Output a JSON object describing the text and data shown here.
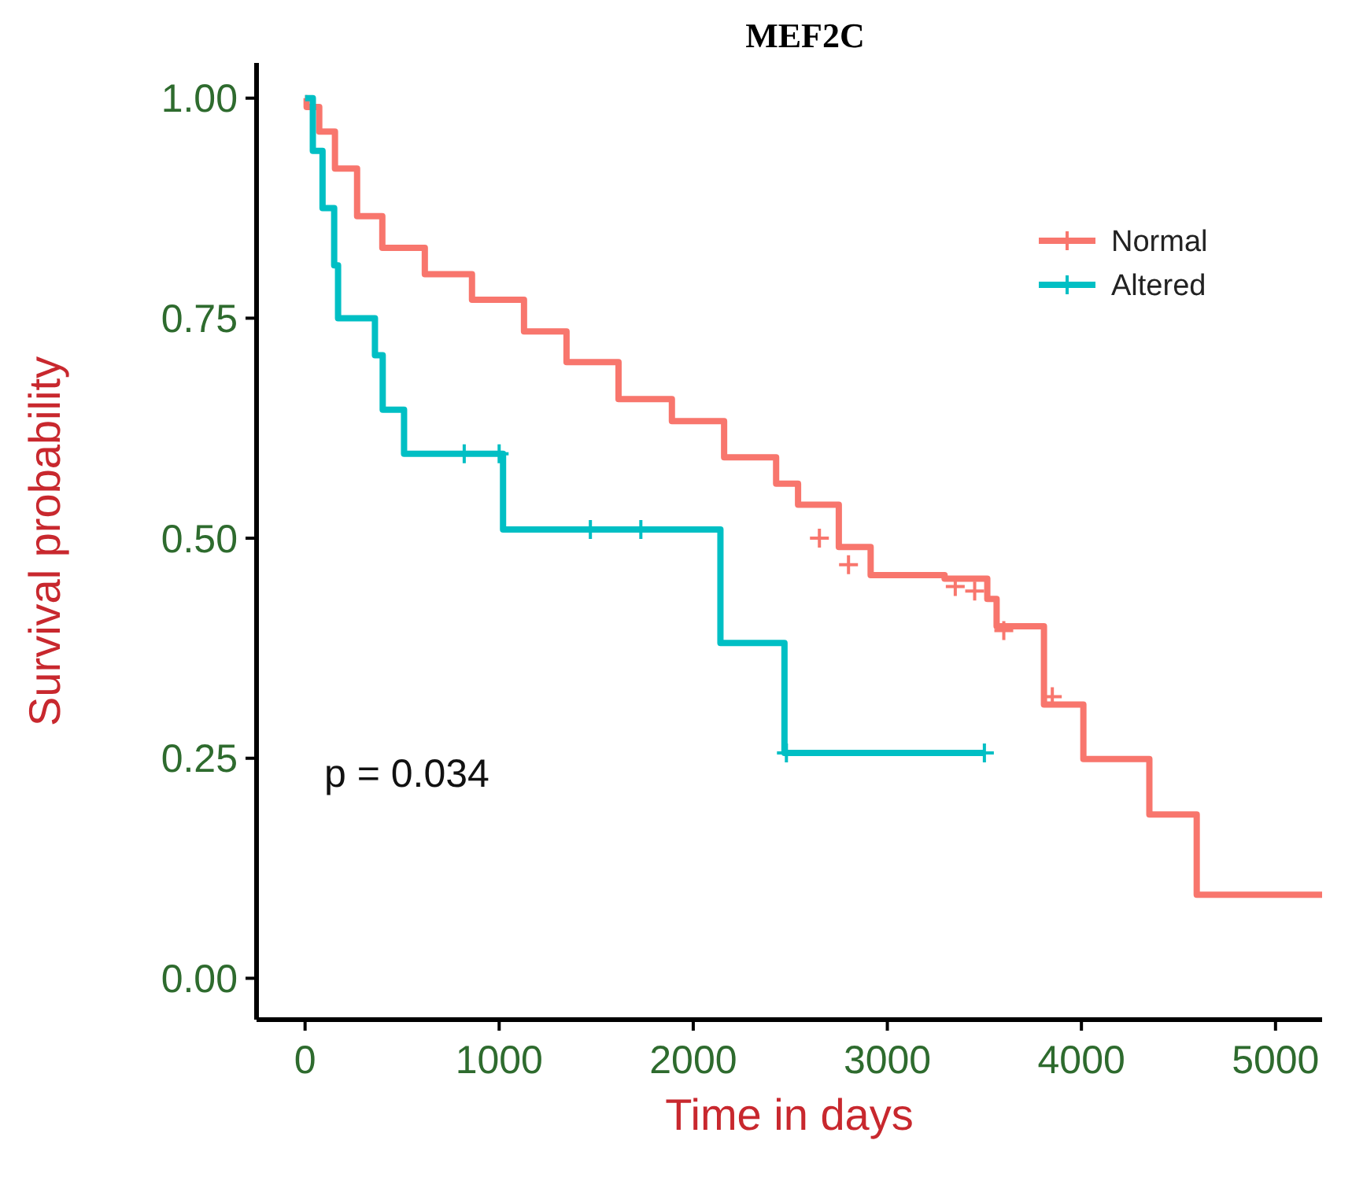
{
  "chart_data": {
    "type": "step",
    "title": "MEF2C",
    "xlabel": "Time in days",
    "ylabel": "Survival probability",
    "xlim": [
      -250,
      5240
    ],
    "ylim": [
      -0.047,
      1.04
    ],
    "xticks": [
      0,
      1000,
      2000,
      3000,
      4000,
      5000
    ],
    "yticks": [
      {
        "value": 0,
        "label": "0.00"
      },
      {
        "value": 0.25,
        "label": "0.25"
      },
      {
        "value": 0.5,
        "label": "0.50"
      },
      {
        "value": 0.75,
        "label": "0.75"
      },
      {
        "value": 1,
        "label": "1.00"
      }
    ],
    "legend": "top right",
    "annotations": [
      "p = 0.034"
    ],
    "series": [
      {
        "name": "Normal",
        "color": "#f8766d",
        "x": [
          0,
          8,
          73,
          154,
          268,
          398,
          617,
          860,
          1128,
          1347,
          1615,
          1890,
          2159,
          2427,
          2540,
          2750,
          2914,
          3295,
          3515,
          3563,
          3807,
          4010,
          4350,
          4594,
          5240
        ],
        "values": [
          1,
          0.99,
          0.962,
          0.92,
          0.866,
          0.83,
          0.8,
          0.771,
          0.735,
          0.7,
          0.658,
          0.633,
          0.592,
          0.562,
          0.538,
          0.49,
          0.458,
          0.454,
          0.431,
          0.4,
          0.311,
          0.249,
          0.186,
          0.095,
          0.095
        ]
      },
      {
        "name": "Altered",
        "color": "#00bfc4",
        "x": [
          0,
          40,
          90,
          150,
          170,
          360,
          400,
          510,
          1020,
          2140,
          2470,
          3500
        ],
        "values": [
          1,
          0.94,
          0.875,
          0.81,
          0.75,
          0.708,
          0.646,
          0.596,
          0.51,
          0.381,
          0.256,
          0.256
        ]
      },
      {
        "type": "scatter",
        "marker": "cross",
        "color": "#f8766d",
        "x": [
          2650,
          2800,
          3350,
          3450,
          3600,
          3850
        ],
        "values": [
          0.5,
          0.47,
          0.445,
          0.44,
          0.395,
          0.32
        ]
      },
      {
        "type": "scatter",
        "marker": "cross",
        "color": "#00bfc4",
        "x": [
          820,
          1000,
          1470,
          1730,
          2480,
          3500
        ],
        "values": [
          0.596,
          0.596,
          0.51,
          0.51,
          0.256,
          0.256
        ]
      }
    ]
  }
}
